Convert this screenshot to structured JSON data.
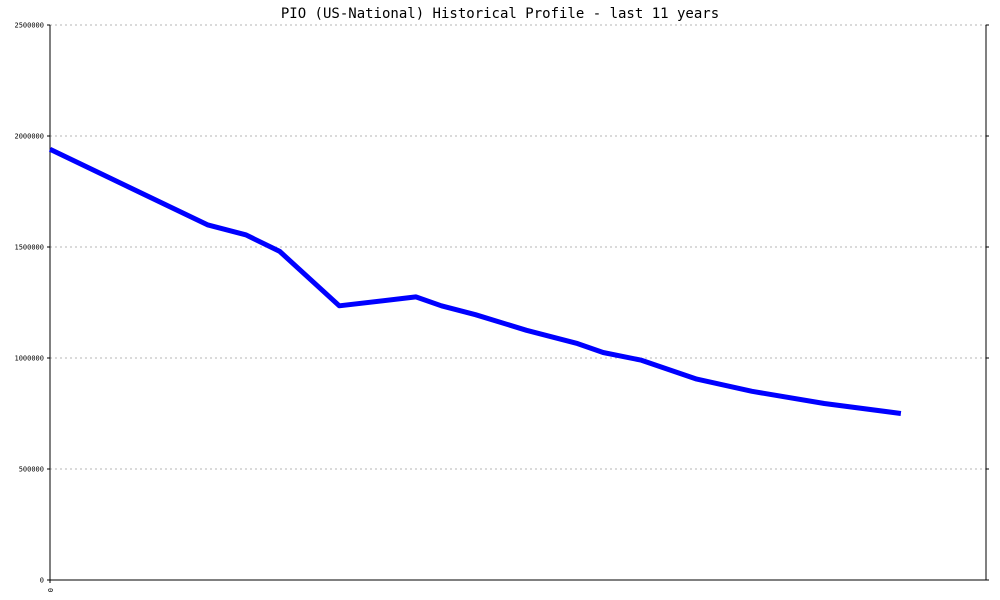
{
  "chart_data": {
    "type": "line",
    "title": "PIO (US-National) Historical Profile - last 11 years",
    "xlabel": "",
    "ylabel": "",
    "x_tick_labels": [
      "0"
    ],
    "y_ticks": [
      0,
      500000,
      1000000,
      1500000,
      2000000,
      2500000
    ],
    "y_tick_labels": [
      "0",
      "500000",
      "1000000",
      "1500000",
      "2000000",
      "2500000"
    ],
    "ylim": [
      0,
      2500000
    ],
    "xlim": [
      0,
      11
    ],
    "grid": true,
    "legend": "none",
    "series": [
      {
        "color": "#0000ff",
        "points": [
          [
            0.0,
            1940000
          ],
          [
            0.9,
            1775000
          ],
          [
            1.85,
            1600000
          ],
          [
            2.3,
            1555000
          ],
          [
            2.7,
            1480000
          ],
          [
            3.4,
            1235000
          ],
          [
            4.3,
            1275000
          ],
          [
            4.6,
            1235000
          ],
          [
            5.0,
            1195000
          ],
          [
            5.6,
            1125000
          ],
          [
            6.2,
            1065000
          ],
          [
            6.5,
            1025000
          ],
          [
            6.95,
            990000
          ],
          [
            7.6,
            905000
          ],
          [
            8.25,
            850000
          ],
          [
            9.1,
            795000
          ],
          [
            10.0,
            750000
          ]
        ]
      }
    ]
  }
}
